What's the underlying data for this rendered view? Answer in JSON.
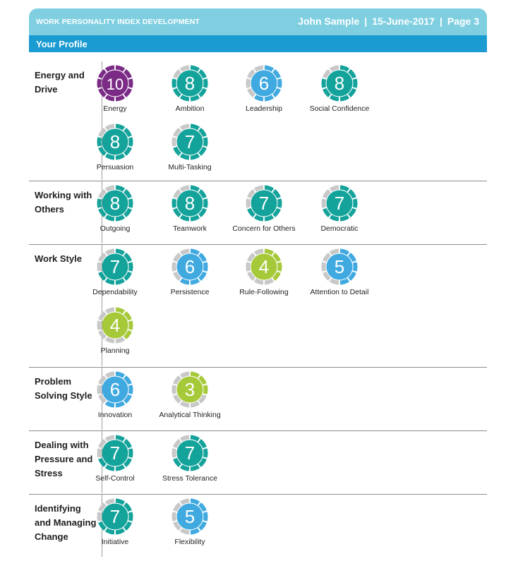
{
  "header": {
    "report_title": "WORK PERSONALITY INDEX DEVELOPMENT",
    "candidate": "John Sample",
    "date": "15-June-2017",
    "page": "Page 3",
    "subtitle": "Your Profile"
  },
  "colors": {
    "header_light": "#7fcfe1",
    "header_dark": "#1a9bd1",
    "high": "#14a39b",
    "mid": "#3fa9e0",
    "low": "#a6c93a",
    "top": "#7b2b86",
    "track": "#c8c8c8"
  },
  "scale_max": 10,
  "sections": [
    {
      "title": "Energy and Drive",
      "traits": [
        {
          "name": "Energy",
          "score": 10
        },
        {
          "name": "Ambition",
          "score": 8
        },
        {
          "name": "Leadership",
          "score": 6
        },
        {
          "name": "Social Confidence",
          "score": 8
        },
        {
          "name": "Persuasion",
          "score": 8
        },
        {
          "name": "Multi-Tasking",
          "score": 7
        }
      ]
    },
    {
      "title": "Working with Others",
      "traits": [
        {
          "name": "Outgoing",
          "score": 8
        },
        {
          "name": "Teamwork",
          "score": 8
        },
        {
          "name": "Concern for Others",
          "score": 7
        },
        {
          "name": "Democratic",
          "score": 7
        }
      ]
    },
    {
      "title": "Work Style",
      "traits": [
        {
          "name": "Dependability",
          "score": 7
        },
        {
          "name": "Persistence",
          "score": 6
        },
        {
          "name": "Rule-Following",
          "score": 4
        },
        {
          "name": "Attention to Detail",
          "score": 5
        },
        {
          "name": "Planning",
          "score": 4
        }
      ]
    },
    {
      "title": "Problem Solving Style",
      "traits": [
        {
          "name": "Innovation",
          "score": 6
        },
        {
          "name": "Analytical Thinking",
          "score": 3
        }
      ]
    },
    {
      "title": "Dealing with Pressure and Stress",
      "traits": [
        {
          "name": "Self-Control",
          "score": 7
        },
        {
          "name": "Stress Tolerance",
          "score": 7
        }
      ]
    },
    {
      "title": "Identifying and Managing Change",
      "traits": [
        {
          "name": "Initiative",
          "score": 7
        },
        {
          "name": "Flexibility",
          "score": 5
        }
      ]
    }
  ]
}
